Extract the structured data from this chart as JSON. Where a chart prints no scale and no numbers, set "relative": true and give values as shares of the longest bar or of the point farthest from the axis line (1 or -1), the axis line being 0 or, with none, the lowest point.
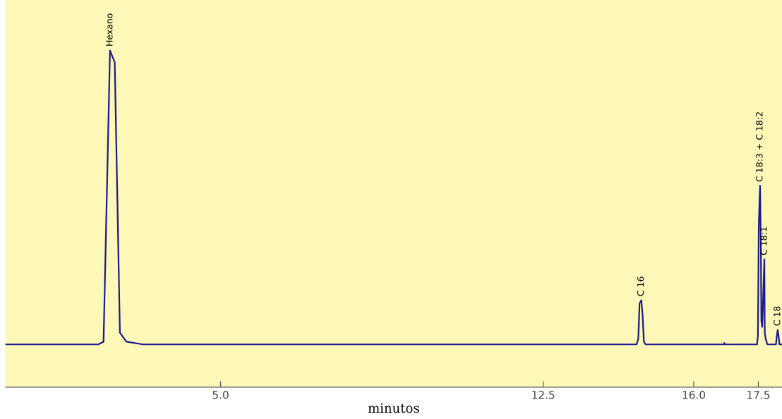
{
  "chart_data": {
    "type": "line",
    "relative": true,
    "xlabel": "minutos",
    "xlim": [
      0,
      18.05
    ],
    "xticks": [
      {
        "value": 5,
        "label": "5.0"
      },
      {
        "value": 12.5,
        "label": "12.5"
      },
      {
        "value": 16,
        "label": "16.0"
      },
      {
        "value": 17.5,
        "label": "17.5"
      }
    ],
    "grid": false,
    "legend": false,
    "series": [
      {
        "color": "#1a1a8c",
        "x": [
          0.0,
          2.16,
          2.28,
          2.37,
          2.43,
          2.54,
          2.6,
          2.66,
          2.81,
          3.2,
          14.67,
          14.71,
          14.74,
          14.78,
          14.81,
          14.84,
          14.88,
          16.7,
          16.71,
          16.72,
          17.47,
          17.49,
          17.5,
          17.51,
          17.53,
          17.54,
          17.56,
          17.57,
          17.59,
          17.6,
          17.62,
          17.64,
          17.65,
          17.67,
          17.71,
          17.75,
          17.91,
          17.93,
          17.95,
          17.97,
          17.99,
          18.05
        ],
        "values": [
          0.127,
          0.127,
          0.135,
          0.651,
          1.0,
          0.965,
          0.564,
          0.162,
          0.135,
          0.127,
          0.127,
          0.144,
          0.249,
          0.258,
          0.214,
          0.135,
          0.127,
          0.127,
          0.131,
          0.127,
          0.127,
          0.153,
          0.301,
          0.476,
          0.564,
          0.598,
          0.406,
          0.197,
          0.179,
          0.214,
          0.301,
          0.38,
          0.162,
          0.144,
          0.127,
          0.127,
          0.127,
          0.153,
          0.17,
          0.153,
          0.127,
          0.127
        ]
      }
    ],
    "annotations": [
      {
        "text": "Hexano",
        "x": 2.43,
        "y": 1.0
      },
      {
        "text": "C 16",
        "x": 14.78,
        "y": 0.258
      },
      {
        "text": "C 18:3 + C 18:2",
        "x": 17.54,
        "y": 0.598
      },
      {
        "text": "C 18:1",
        "x": 17.64,
        "y": 0.38
      },
      {
        "text": "C 18",
        "x": 17.95,
        "y": 0.17
      }
    ]
  }
}
